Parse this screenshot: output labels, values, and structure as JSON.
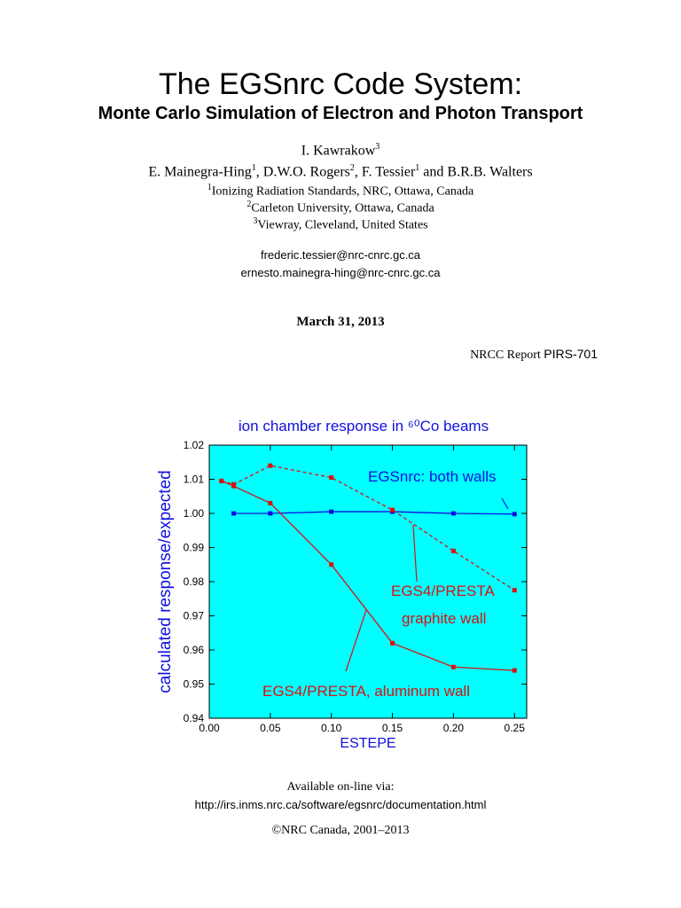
{
  "title": "The EGSnrc Code System:",
  "subtitle": "Monte Carlo Simulation of Electron and Photon Transport",
  "authors": {
    "line1": [
      {
        "text": "I. Kawrakow",
        "sup": "3"
      }
    ],
    "line2": [
      {
        "text": "E. Mainegra-Hing",
        "sup": "1"
      },
      {
        "text": ", D.W.O. Rogers",
        "sup": "2"
      },
      {
        "text": ", F. Tessier",
        "sup": "1"
      },
      {
        "text": " and B.R.B. Walters"
      }
    ]
  },
  "affiliations": [
    {
      "sup": "1",
      "text": "Ionizing Radiation Standards,  NRC, Ottawa, Canada"
    },
    {
      "sup": "2",
      "text": "Carleton University, Ottawa, Canada"
    },
    {
      "sup": "3",
      "text": "Viewray, Cleveland, United States"
    }
  ],
  "emails": [
    "frederic.tessier@nrc-cnrc.gc.ca",
    "ernesto.mainegra-hing@nrc-cnrc.gc.ca"
  ],
  "date": "March 31, 2013",
  "report": {
    "prefix": "NRCC Report",
    "number": "PIRS-701"
  },
  "chart_data": {
    "type": "line",
    "title": "ion chamber response in ⁶⁰Co beams",
    "x_label": "ESTEPE",
    "y_label": "calculated response/expected",
    "xlim": [
      0,
      0.26
    ],
    "ylim": [
      0.94,
      1.02
    ],
    "xticks": [
      {
        "value": 0,
        "label": "0.00"
      },
      {
        "value": 0.05,
        "label": "0.05"
      },
      {
        "value": 0.1,
        "label": "0.10"
      },
      {
        "value": 0.15,
        "label": "0.15"
      },
      {
        "value": 0.2,
        "label": "0.20"
      },
      {
        "value": 0.25,
        "label": "0.25"
      }
    ],
    "yticks": [
      {
        "value": 0.94,
        "label": "0.94"
      },
      {
        "value": 0.95,
        "label": "0.95"
      },
      {
        "value": 0.96,
        "label": "0.96"
      },
      {
        "value": 0.97,
        "label": "0.97"
      },
      {
        "value": 0.98,
        "label": "0.98"
      },
      {
        "value": 0.99,
        "label": "0.99"
      },
      {
        "value": 1,
        "label": "1.00"
      },
      {
        "value": 1.01,
        "label": "1.01"
      },
      {
        "value": 1.02,
        "label": "1.02"
      }
    ],
    "background": "#00ffff",
    "series": [
      {
        "color": "#1010e0",
        "dashed": false,
        "x": [
          0.02,
          0.05,
          0.1,
          0.15,
          0.2,
          0.25
        ],
        "values": [
          1.0,
          1.0,
          1.0005,
          1.0005,
          1.0,
          0.9998
        ]
      },
      {
        "color": "#dd1010",
        "dashed": true,
        "x": [
          0.01,
          0.02,
          0.05,
          0.1,
          0.15,
          0.2,
          0.25
        ],
        "values": [
          1.0095,
          1.0085,
          1.014,
          1.0105,
          1.001,
          0.989,
          0.9775
        ]
      },
      {
        "color": "#dd1010",
        "dashed": false,
        "x": [
          0.01,
          0.02,
          0.05,
          0.1,
          0.15,
          0.2,
          0.25
        ],
        "values": [
          1.0095,
          1.008,
          1.003,
          0.985,
          0.962,
          0.955,
          0.954
        ]
      }
    ],
    "annotations": [
      {
        "text": "EGSnrc: both walls",
        "color": "#1010e0"
      },
      {
        "text": "EGS4/PRESTA",
        "color": "#dd1010"
      },
      {
        "text": "graphite wall",
        "color": "#dd1010"
      },
      {
        "text": "EGS4/PRESTA, aluminum wall",
        "color": "#dd1010"
      }
    ]
  },
  "footer": {
    "available": "Available on-line via:",
    "url": "http://irs.inms.nrc.ca/software/egsnrc/documentation.html",
    "copyright": "©NRC Canada, 2001–2013"
  }
}
